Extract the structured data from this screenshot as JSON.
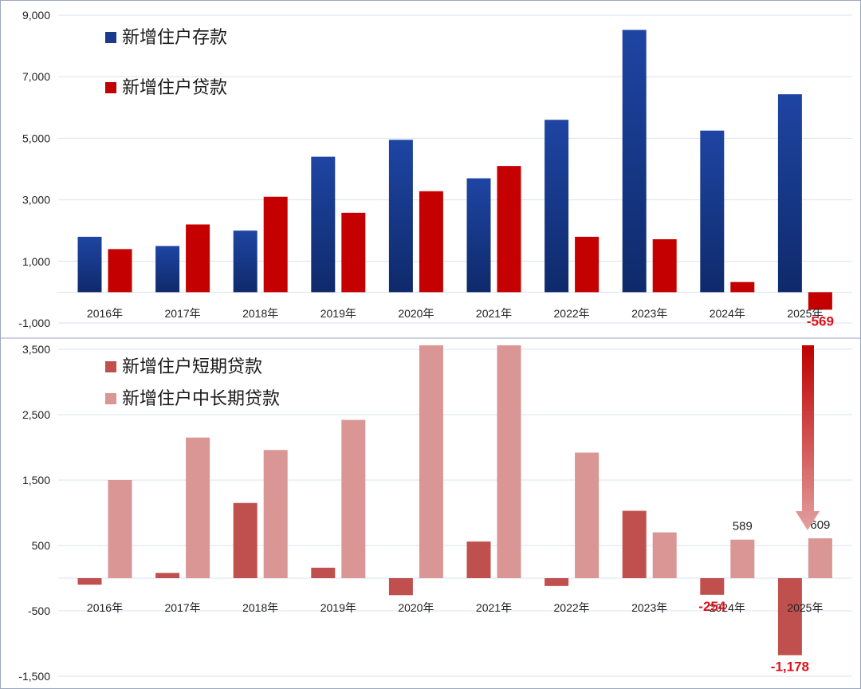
{
  "chart_data": [
    {
      "type": "bar",
      "categories": [
        "2016年",
        "2017年",
        "2018年",
        "2019年",
        "2020年",
        "2021年",
        "2022年",
        "2023年",
        "2024年",
        "2025年"
      ],
      "series": [
        {
          "name": "新增住户存款",
          "color": "#1a3a8c",
          "values": [
            1800,
            1500,
            2000,
            4400,
            4950,
            3700,
            5600,
            8520,
            5250,
            6430
          ]
        },
        {
          "name": "新增住户贷款",
          "color": "#c00000",
          "values": [
            1400,
            2200,
            3100,
            2580,
            3280,
            4100,
            1800,
            1720,
            330,
            -569
          ]
        }
      ],
      "ylim": [
        -1000,
        9000
      ],
      "yticks": [
        "9,000",
        "7,000",
        "5,000",
        "3,000",
        "1,000",
        "-1,000"
      ],
      "ytick_values": [
        9000,
        7000,
        5000,
        3000,
        1000,
        -1000
      ],
      "data_labels": [
        {
          "series": 1,
          "index": 9,
          "text": "-569"
        }
      ],
      "legend": "top-left",
      "grid": true
    },
    {
      "type": "bar",
      "categories": [
        "2016年",
        "2017年",
        "2018年",
        "2019年",
        "2020年",
        "2021年",
        "2022年",
        "2023年",
        "2024年",
        "2025年"
      ],
      "series": [
        {
          "name": "新增住户短期贷款",
          "color": "#c0504d",
          "values": [
            -100,
            80,
            1150,
            160,
            -260,
            560,
            -120,
            1030,
            -254,
            -1178
          ]
        },
        {
          "name": "新增住户中长期贷款",
          "color": "#d99694",
          "values": [
            1500,
            2150,
            1960,
            2420,
            3560,
            3560,
            1920,
            700,
            589,
            609
          ]
        }
      ],
      "ylim": [
        -1500,
        4100
      ],
      "yticks": [
        "3,500",
        "2,500",
        "1,500",
        "500",
        "-500",
        "-1,500"
      ],
      "ytick_values": [
        3500,
        2500,
        1500,
        500,
        -500,
        -1500
      ],
      "data_labels": [
        {
          "series": 1,
          "index": 8,
          "text": "589",
          "style": "pos"
        },
        {
          "series": 1,
          "index": 9,
          "text": "609",
          "style": "pos"
        },
        {
          "series": 0,
          "index": 8,
          "text": "-254",
          "style": "neg"
        },
        {
          "series": 0,
          "index": 9,
          "text": "-1,178",
          "style": "neg"
        }
      ],
      "legend": "top-left",
      "grid": true
    }
  ]
}
